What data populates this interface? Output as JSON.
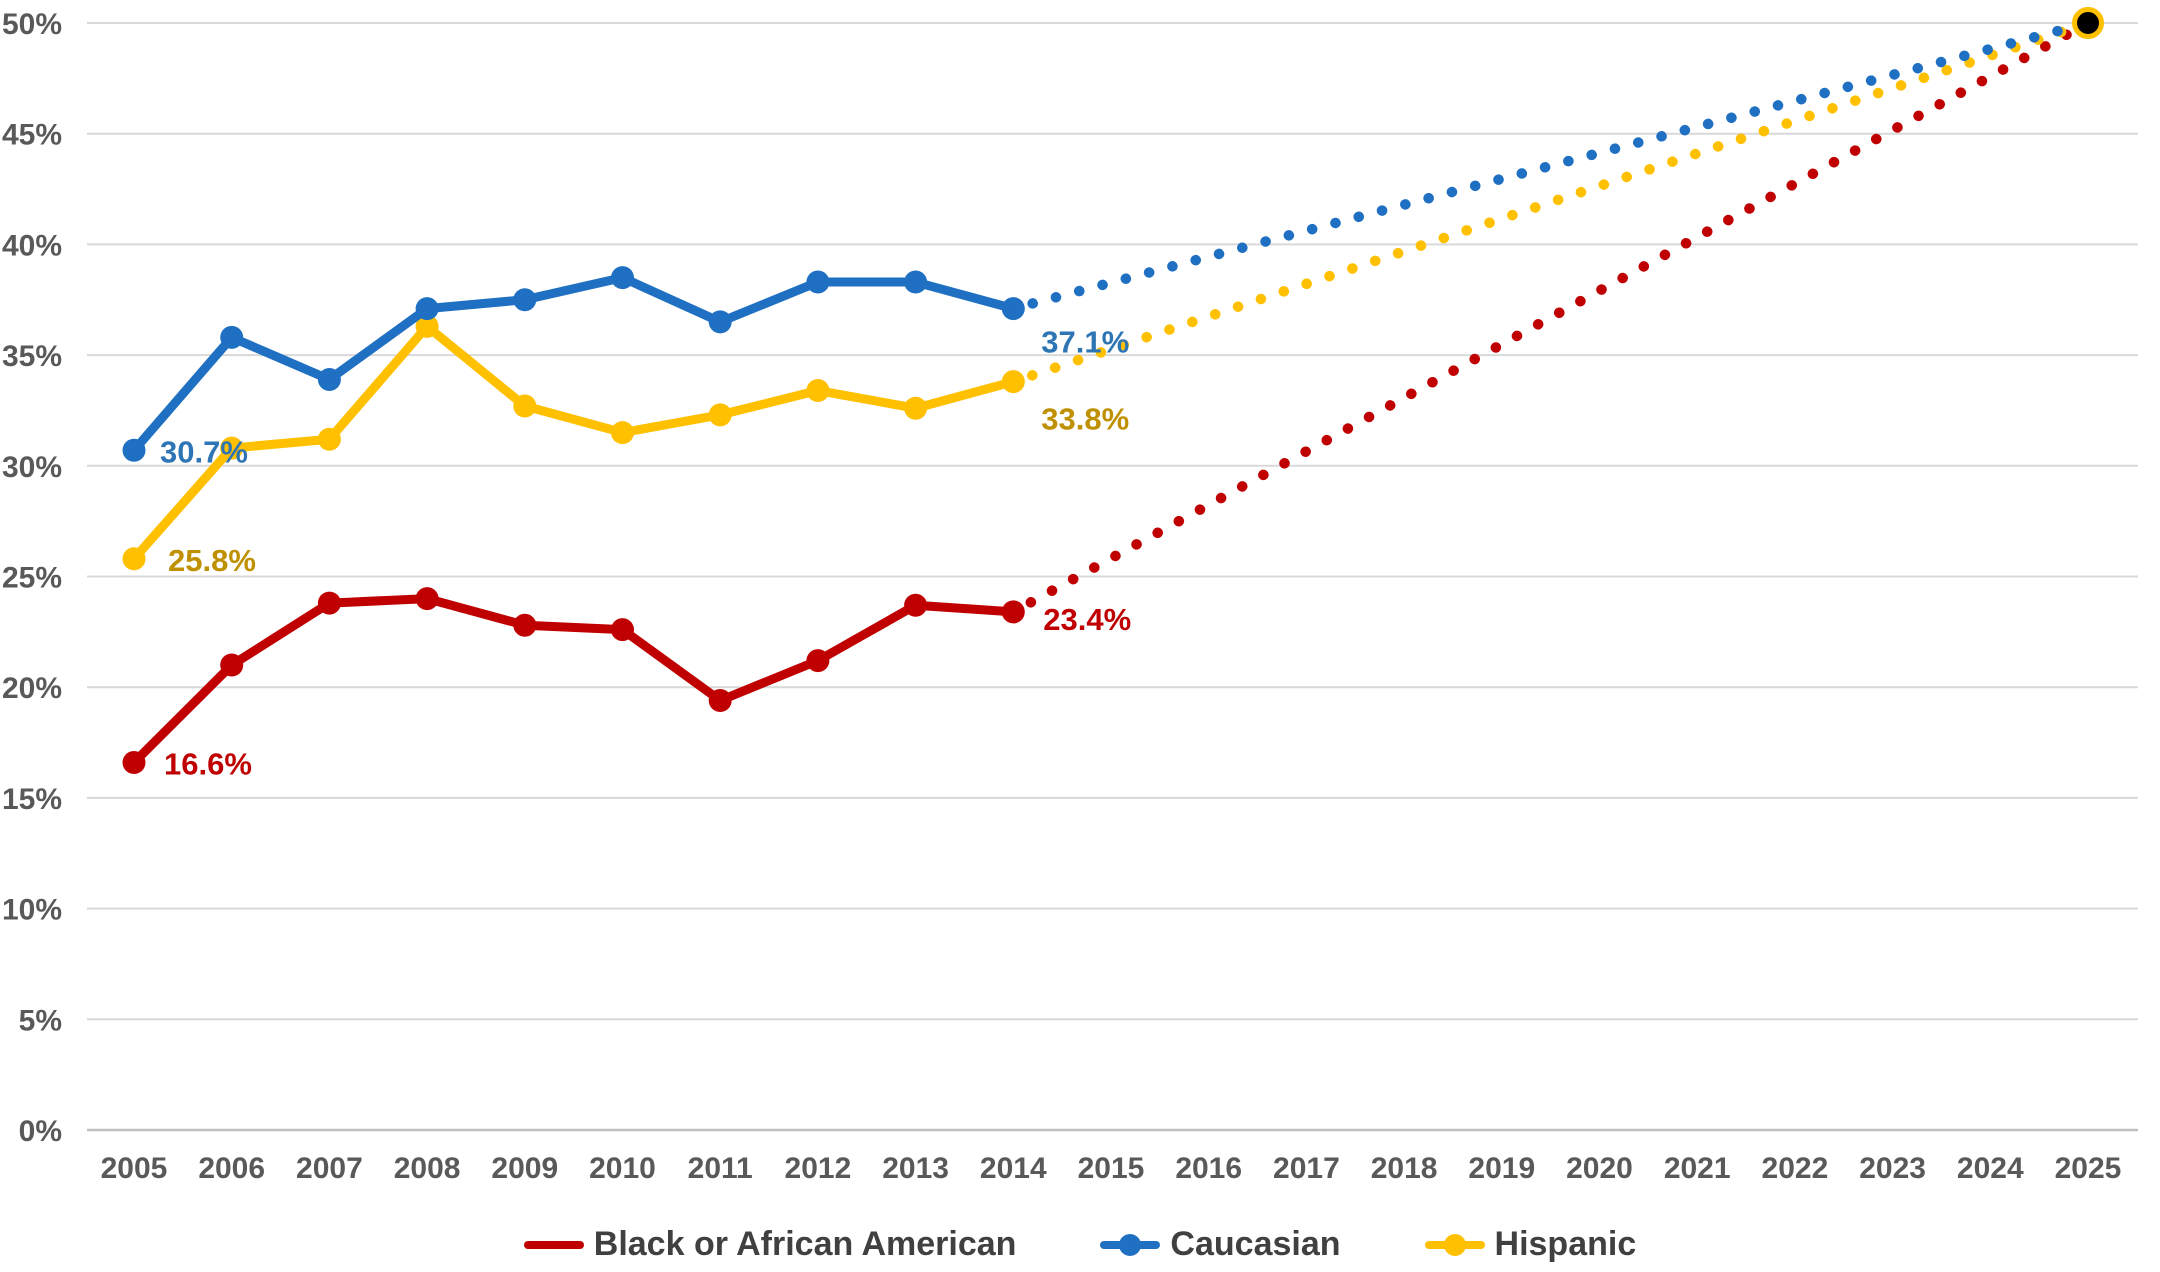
{
  "chart_data": {
    "type": "line",
    "title": "",
    "data_years": [
      2005,
      2006,
      2007,
      2008,
      2009,
      2010,
      2011,
      2012,
      2013,
      2014
    ],
    "series": [
      {
        "name": "Black or African American",
        "color": "#C00000",
        "label_color": "#C00000",
        "legend_marker": "line",
        "values": [
          16.6,
          21.0,
          23.8,
          24.0,
          22.8,
          22.6,
          19.4,
          21.2,
          23.7,
          23.4
        ],
        "first_point_label": "16.6%",
        "last_point_label": "23.4%"
      },
      {
        "name": "Caucasian",
        "color": "#1F70C2",
        "label_color": "#2E75B6",
        "legend_marker": "line-dot",
        "values": [
          30.7,
          35.8,
          33.9,
          37.1,
          37.5,
          38.5,
          36.5,
          38.3,
          38.3,
          37.1
        ],
        "first_point_label": "30.7%",
        "last_point_label": "37.1%"
      },
      {
        "name": "Hispanic",
        "color": "#FFC000",
        "label_color": "#BF9000",
        "legend_marker": "line-dot",
        "values": [
          25.8,
          30.8,
          31.2,
          36.3,
          32.7,
          31.5,
          32.3,
          33.4,
          32.6,
          33.8
        ],
        "first_point_label": "25.8%",
        "last_point_label": "33.8%"
      }
    ],
    "projection": {
      "style": "dotted",
      "target_year": 2025,
      "target_value": 50,
      "target_dot_color": "#000000",
      "target_dot_ring_color": "#FFC000"
    },
    "x_axis": {
      "tick_labels": [
        "2005",
        "2006",
        "2007",
        "2008",
        "2009",
        "2010",
        "2011",
        "2012",
        "2013",
        "2014",
        "2015",
        "2016",
        "2017",
        "2018",
        "2019",
        "2020",
        "2021",
        "2022",
        "2023",
        "2024",
        "2025"
      ],
      "first_year": 2005,
      "last_year": 2025
    },
    "y_axis": {
      "min": 0,
      "max": 50,
      "step": 5,
      "tick_labels": [
        "0%",
        "5%",
        "10%",
        "15%",
        "20%",
        "25%",
        "30%",
        "35%",
        "40%",
        "45%",
        "50%"
      ]
    },
    "grid": true,
    "legend_position": "bottom",
    "colors": {
      "gridline": "#D9D9D9",
      "axis_line": "#BFBFBF",
      "tick_text": "#595959",
      "legend_text": "#404040",
      "background": "#FFFFFF"
    }
  }
}
